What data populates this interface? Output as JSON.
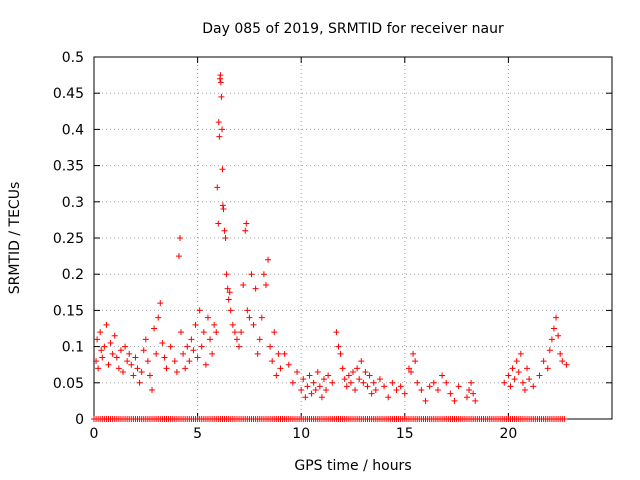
{
  "chart_data": {
    "type": "scatter",
    "title": "Day 085 of 2019, SRMTID for receiver naur",
    "xlabel": "GPS time / hours",
    "ylabel": "SRMTID / TECUs",
    "xlim": [
      0,
      25
    ],
    "ylim": [
      0,
      0.5
    ],
    "grid": true,
    "x_ticks": [
      {
        "value": 0,
        "label": "0"
      },
      {
        "value": 5,
        "label": "5"
      },
      {
        "value": 10,
        "label": "10"
      },
      {
        "value": 15,
        "label": "15"
      },
      {
        "value": 20,
        "label": "20"
      }
    ],
    "y_ticks": [
      {
        "value": 0,
        "label": "0"
      },
      {
        "value": 0.05,
        "label": "0.05"
      },
      {
        "value": 0.1,
        "label": "0.1"
      },
      {
        "value": 0.15,
        "label": "0.15"
      },
      {
        "value": 0.2,
        "label": "0.2"
      },
      {
        "value": 0.25,
        "label": "0.25"
      },
      {
        "value": 0.3,
        "label": "0.3"
      },
      {
        "value": 0.35,
        "label": "0.35"
      },
      {
        "value": 0.4,
        "label": "0.4"
      },
      {
        "value": 0.45,
        "label": "0.45"
      },
      {
        "value": 0.5,
        "label": "0.5"
      }
    ],
    "marker": "+",
    "color": "#ff0000",
    "series": [
      {
        "name": "SRMTID",
        "points": [
          [
            0.1,
            0.08
          ],
          [
            0.15,
            0.11
          ],
          [
            0.2,
            0.07
          ],
          [
            0.3,
            0.12
          ],
          [
            0.35,
            0.095
          ],
          [
            0.4,
            0.085
          ],
          [
            0.5,
            0.1
          ],
          [
            0.6,
            0.13
          ],
          [
            0.7,
            0.075
          ],
          [
            0.8,
            0.105
          ],
          [
            0.9,
            0.09
          ],
          [
            1.0,
            0.115
          ],
          [
            1.1,
            0.085
          ],
          [
            1.2,
            0.07
          ],
          [
            1.3,
            0.095
          ],
          [
            1.4,
            0.065
          ],
          [
            1.5,
            0.1
          ],
          [
            1.6,
            0.08
          ],
          [
            1.7,
            0.09
          ],
          [
            1.8,
            0.075
          ],
          [
            1.9,
            0.06
          ],
          [
            2.0,
            0.085
          ],
          [
            2.1,
            0.07
          ],
          [
            2.2,
            0.05
          ],
          [
            2.3,
            0.065
          ],
          [
            2.4,
            0.095
          ],
          [
            2.5,
            0.11
          ],
          [
            2.6,
            0.08
          ],
          [
            2.7,
            0.06
          ],
          [
            2.8,
            0.04
          ],
          [
            2.9,
            0.125
          ],
          [
            3.0,
            0.09
          ],
          [
            3.1,
            0.14
          ],
          [
            3.2,
            0.16
          ],
          [
            3.3,
            0.105
          ],
          [
            3.4,
            0.085
          ],
          [
            3.5,
            0.07
          ],
          [
            3.7,
            0.1
          ],
          [
            3.9,
            0.08
          ],
          [
            4.0,
            0.065
          ],
          [
            4.1,
            0.225
          ],
          [
            4.15,
            0.25
          ],
          [
            4.2,
            0.12
          ],
          [
            4.3,
            0.09
          ],
          [
            4.4,
            0.07
          ],
          [
            4.5,
            0.1
          ],
          [
            4.6,
            0.08
          ],
          [
            4.7,
            0.11
          ],
          [
            4.8,
            0.095
          ],
          [
            4.9,
            0.13
          ],
          [
            5.0,
            0.085
          ],
          [
            5.1,
            0.15
          ],
          [
            5.2,
            0.1
          ],
          [
            5.3,
            0.12
          ],
          [
            5.4,
            0.075
          ],
          [
            5.5,
            0.14
          ],
          [
            5.6,
            0.11
          ],
          [
            5.7,
            0.09
          ],
          [
            5.8,
            0.13
          ],
          [
            5.9,
            0.12
          ],
          [
            5.95,
            0.32
          ],
          [
            6.0,
            0.27
          ],
          [
            6.02,
            0.41
          ],
          [
            6.05,
            0.39
          ],
          [
            6.08,
            0.47
          ],
          [
            6.1,
            0.475
          ],
          [
            6.12,
            0.465
          ],
          [
            6.15,
            0.445
          ],
          [
            6.18,
            0.4
          ],
          [
            6.2,
            0.345
          ],
          [
            6.22,
            0.295
          ],
          [
            6.25,
            0.29
          ],
          [
            6.3,
            0.26
          ],
          [
            6.35,
            0.25
          ],
          [
            6.4,
            0.2
          ],
          [
            6.45,
            0.18
          ],
          [
            6.5,
            0.165
          ],
          [
            6.55,
            0.175
          ],
          [
            6.6,
            0.15
          ],
          [
            6.7,
            0.13
          ],
          [
            6.8,
            0.12
          ],
          [
            6.9,
            0.11
          ],
          [
            7.0,
            0.1
          ],
          [
            7.1,
            0.12
          ],
          [
            7.2,
            0.185
          ],
          [
            7.3,
            0.26
          ],
          [
            7.35,
            0.27
          ],
          [
            7.4,
            0.15
          ],
          [
            7.5,
            0.14
          ],
          [
            7.6,
            0.2
          ],
          [
            7.7,
            0.13
          ],
          [
            7.8,
            0.18
          ],
          [
            7.9,
            0.09
          ],
          [
            8.0,
            0.11
          ],
          [
            8.1,
            0.14
          ],
          [
            8.2,
            0.2
          ],
          [
            8.3,
            0.185
          ],
          [
            8.4,
            0.22
          ],
          [
            8.5,
            0.1
          ],
          [
            8.6,
            0.08
          ],
          [
            8.7,
            0.12
          ],
          [
            8.8,
            0.06
          ],
          [
            8.9,
            0.09
          ],
          [
            9.0,
            0.07
          ],
          [
            9.2,
            0.09
          ],
          [
            9.4,
            0.075
          ],
          [
            9.6,
            0.05
          ],
          [
            9.8,
            0.065
          ],
          [
            10.0,
            0.04
          ],
          [
            10.1,
            0.055
          ],
          [
            10.2,
            0.03
          ],
          [
            10.3,
            0.045
          ],
          [
            10.4,
            0.06
          ],
          [
            10.5,
            0.035
          ],
          [
            10.6,
            0.05
          ],
          [
            10.7,
            0.04
          ],
          [
            10.8,
            0.065
          ],
          [
            10.9,
            0.045
          ],
          [
            11.0,
            0.03
          ],
          [
            11.1,
            0.055
          ],
          [
            11.2,
            0.04
          ],
          [
            11.3,
            0.06
          ],
          [
            11.5,
            0.05
          ],
          [
            11.7,
            0.12
          ],
          [
            11.8,
            0.1
          ],
          [
            11.9,
            0.09
          ],
          [
            12.0,
            0.07
          ],
          [
            12.1,
            0.055
          ],
          [
            12.2,
            0.045
          ],
          [
            12.3,
            0.06
          ],
          [
            12.4,
            0.05
          ],
          [
            12.5,
            0.065
          ],
          [
            12.6,
            0.04
          ],
          [
            12.7,
            0.07
          ],
          [
            12.8,
            0.055
          ],
          [
            12.9,
            0.08
          ],
          [
            13.0,
            0.05
          ],
          [
            13.1,
            0.065
          ],
          [
            13.2,
            0.045
          ],
          [
            13.3,
            0.06
          ],
          [
            13.4,
            0.035
          ],
          [
            13.5,
            0.05
          ],
          [
            13.6,
            0.04
          ],
          [
            13.8,
            0.055
          ],
          [
            14.0,
            0.045
          ],
          [
            14.2,
            0.03
          ],
          [
            14.4,
            0.05
          ],
          [
            14.6,
            0.04
          ],
          [
            14.8,
            0.045
          ],
          [
            15.0,
            0.035
          ],
          [
            15.2,
            0.07
          ],
          [
            15.3,
            0.065
          ],
          [
            15.4,
            0.09
          ],
          [
            15.5,
            0.08
          ],
          [
            15.6,
            0.05
          ],
          [
            15.8,
            0.04
          ],
          [
            16.0,
            0.025
          ],
          [
            16.2,
            0.045
          ],
          [
            16.4,
            0.05
          ],
          [
            16.6,
            0.04
          ],
          [
            16.8,
            0.06
          ],
          [
            17.0,
            0.05
          ],
          [
            17.2,
            0.035
          ],
          [
            17.4,
            0.025
          ],
          [
            17.6,
            0.045
          ],
          [
            18.0,
            0.03
          ],
          [
            18.1,
            0.04
          ],
          [
            18.2,
            0.05
          ],
          [
            18.3,
            0.035
          ],
          [
            18.4,
            0.025
          ],
          [
            19.8,
            0.05
          ],
          [
            20.0,
            0.06
          ],
          [
            20.1,
            0.045
          ],
          [
            20.2,
            0.07
          ],
          [
            20.3,
            0.055
          ],
          [
            20.4,
            0.08
          ],
          [
            20.5,
            0.065
          ],
          [
            20.6,
            0.09
          ],
          [
            20.7,
            0.05
          ],
          [
            20.8,
            0.04
          ],
          [
            20.9,
            0.07
          ],
          [
            21.0,
            0.055
          ],
          [
            21.2,
            0.045
          ],
          [
            21.5,
            0.06
          ],
          [
            21.7,
            0.08
          ],
          [
            21.9,
            0.07
          ],
          [
            22.0,
            0.095
          ],
          [
            22.1,
            0.11
          ],
          [
            22.2,
            0.125
          ],
          [
            22.3,
            0.14
          ],
          [
            22.4,
            0.115
          ],
          [
            22.5,
            0.09
          ],
          [
            22.6,
            0.08
          ],
          [
            22.8,
            0.075
          ]
        ]
      },
      {
        "name": "zero-baseline",
        "x_range": [
          0.0,
          22.7
        ],
        "step": 0.1,
        "y": 0
      }
    ]
  }
}
